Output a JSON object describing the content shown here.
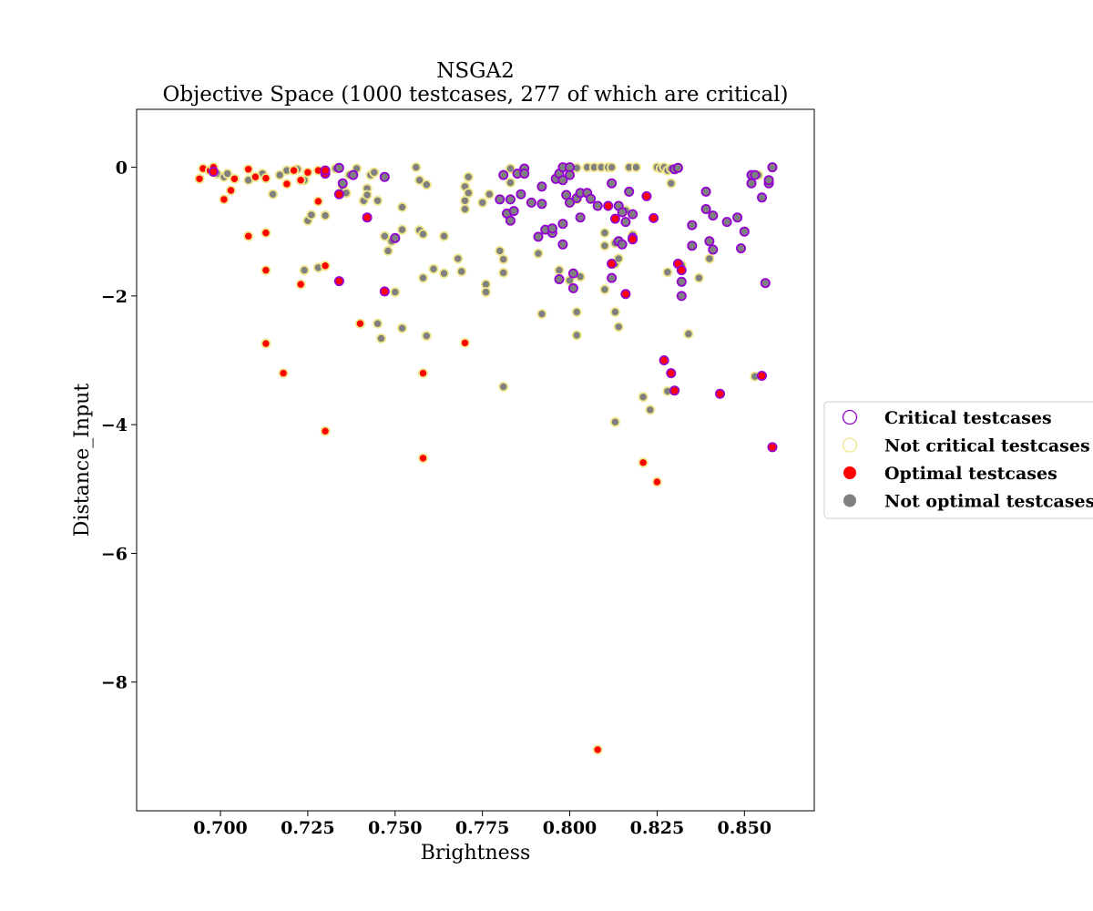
{
  "chart_data": {
    "type": "scatter",
    "title": "NSGA2",
    "subtitle": "Objective Space (1000 testcases, 277 of which are critical)",
    "xlabel": "Brightness",
    "ylabel": "Distance_Input",
    "xlim": [
      0.676,
      0.87
    ],
    "ylim": [
      -10.0,
      0.9
    ],
    "xticks": [
      0.7,
      0.725,
      0.75,
      0.775,
      0.8,
      0.825,
      0.85
    ],
    "xtick_labels": [
      "0.700",
      "0.725",
      "0.750",
      "0.775",
      "0.800",
      "0.825",
      "0.850"
    ],
    "yticks": [
      0,
      -2,
      -4,
      -6,
      -8
    ],
    "ytick_labels": [
      "0",
      "−2",
      "−4",
      "−6",
      "−8"
    ],
    "grid": false,
    "legend_position": "right, outside plot",
    "legend": [
      {
        "label": "Critical testcases",
        "marker": "hollow-circle",
        "color": "#9400d3"
      },
      {
        "label": "Not critical testcases",
        "marker": "hollow-circle",
        "color": "#f0e68c"
      },
      {
        "label": "Optimal testcases",
        "marker": "filled-circle",
        "color": "#ff0000"
      },
      {
        "label": "Not optimal testcases",
        "marker": "filled-circle",
        "color": "#808080"
      }
    ],
    "colors": {
      "critical_edge": "#9400d3",
      "not_critical_edge": "#f0e68c",
      "optimal_fill": "#ff0000",
      "not_optimal_fill": "#808080"
    },
    "series": [
      {
        "name": "Not critical, not optimal",
        "edge": "#f0e68c",
        "fill": "#808080",
        "points": [
          [
            0.697,
            -0.05
          ],
          [
            0.699,
            -0.1
          ],
          [
            0.701,
            -0.15
          ],
          [
            0.702,
            -0.1
          ],
          [
            0.708,
            -0.2
          ],
          [
            0.712,
            -0.1
          ],
          [
            0.715,
            -0.42
          ],
          [
            0.717,
            -0.12
          ],
          [
            0.719,
            -0.05
          ],
          [
            0.722,
            -0.03
          ],
          [
            0.724,
            -0.2
          ],
          [
            0.725,
            -0.83
          ],
          [
            0.726,
            -0.74
          ],
          [
            0.724,
            -1.6
          ],
          [
            0.728,
            -1.56
          ],
          [
            0.73,
            -0.75
          ],
          [
            0.733,
            -0.02
          ],
          [
            0.735,
            -0.3
          ],
          [
            0.736,
            -0.4
          ],
          [
            0.737,
            -0.12
          ],
          [
            0.739,
            -0.02
          ],
          [
            0.741,
            -0.52
          ],
          [
            0.742,
            -0.33
          ],
          [
            0.742,
            -0.43
          ],
          [
            0.743,
            -0.12
          ],
          [
            0.744,
            -0.08
          ],
          [
            0.745,
            -0.52
          ],
          [
            0.745,
            -2.43
          ],
          [
            0.746,
            -2.66
          ],
          [
            0.747,
            -1.07
          ],
          [
            0.748,
            -1.3
          ],
          [
            0.749,
            -1.15
          ],
          [
            0.75,
            -1.94
          ],
          [
            0.752,
            -0.62
          ],
          [
            0.752,
            -0.97
          ],
          [
            0.752,
            -2.5
          ],
          [
            0.756,
            0.0
          ],
          [
            0.757,
            -0.2
          ],
          [
            0.757,
            -0.98
          ],
          [
            0.758,
            -1.04
          ],
          [
            0.758,
            -1.72
          ],
          [
            0.759,
            -0.27
          ],
          [
            0.759,
            -2.62
          ],
          [
            0.761,
            -1.58
          ],
          [
            0.764,
            -1.07
          ],
          [
            0.764,
            -1.65
          ],
          [
            0.768,
            -1.42
          ],
          [
            0.769,
            -1.62
          ],
          [
            0.77,
            -0.52
          ],
          [
            0.77,
            -0.65
          ],
          [
            0.77,
            -0.3
          ],
          [
            0.771,
            -0.15
          ],
          [
            0.771,
            -0.4
          ],
          [
            0.775,
            -0.55
          ],
          [
            0.776,
            -1.82
          ],
          [
            0.776,
            -1.94
          ],
          [
            0.777,
            -0.42
          ],
          [
            0.78,
            -1.3
          ],
          [
            0.781,
            -1.43
          ],
          [
            0.781,
            -1.64
          ],
          [
            0.781,
            -3.41
          ],
          [
            0.783,
            -0.24
          ],
          [
            0.783,
            -0.02
          ],
          [
            0.791,
            -1.34
          ],
          [
            0.792,
            -2.28
          ],
          [
            0.797,
            -1.6
          ],
          [
            0.8,
            -1.76
          ],
          [
            0.802,
            -0.01
          ],
          [
            0.802,
            -0.5
          ],
          [
            0.802,
            -2.25
          ],
          [
            0.802,
            -2.61
          ],
          [
            0.803,
            -1.7
          ],
          [
            0.805,
            0.0
          ],
          [
            0.807,
            0.0
          ],
          [
            0.809,
            0.0
          ],
          [
            0.81,
            -1.02
          ],
          [
            0.81,
            -1.22
          ],
          [
            0.81,
            -1.9
          ],
          [
            0.811,
            0.0
          ],
          [
            0.812,
            0.0
          ],
          [
            0.813,
            -1.18
          ],
          [
            0.813,
            -1.5
          ],
          [
            0.813,
            -2.25
          ],
          [
            0.813,
            -3.96
          ],
          [
            0.814,
            -1.42
          ],
          [
            0.814,
            -2.48
          ],
          [
            0.816,
            -0.67
          ],
          [
            0.817,
            0.0
          ],
          [
            0.818,
            -1.05
          ],
          [
            0.819,
            0.0
          ],
          [
            0.821,
            -3.57
          ],
          [
            0.823,
            -3.77
          ],
          [
            0.825,
            0.0
          ],
          [
            0.826,
            -0.02
          ],
          [
            0.827,
            0.0
          ],
          [
            0.828,
            -0.05
          ],
          [
            0.828,
            -1.63
          ],
          [
            0.828,
            -3.48
          ],
          [
            0.829,
            -0.25
          ],
          [
            0.829,
            -0.02
          ],
          [
            0.832,
            -1.52
          ],
          [
            0.834,
            -2.59
          ],
          [
            0.837,
            -1.72
          ],
          [
            0.84,
            -1.42
          ],
          [
            0.853,
            -3.25
          ],
          [
            0.854,
            -0.12
          ]
        ]
      },
      {
        "name": "Critical, not optimal",
        "edge": "#9400d3",
        "fill": "#808080",
        "points": [
          [
            0.734,
            -0.01
          ],
          [
            0.735,
            -0.25
          ],
          [
            0.738,
            -0.12
          ],
          [
            0.747,
            -0.15
          ],
          [
            0.75,
            -1.1
          ],
          [
            0.78,
            -0.5
          ],
          [
            0.781,
            -0.12
          ],
          [
            0.782,
            -0.72
          ],
          [
            0.783,
            -0.5
          ],
          [
            0.783,
            -0.83
          ],
          [
            0.784,
            -0.68
          ],
          [
            0.785,
            -0.1
          ],
          [
            0.786,
            -0.42
          ],
          [
            0.787,
            -0.02
          ],
          [
            0.787,
            -0.1
          ],
          [
            0.789,
            -0.55
          ],
          [
            0.791,
            -1.08
          ],
          [
            0.792,
            -0.3
          ],
          [
            0.792,
            -0.57
          ],
          [
            0.793,
            -0.97
          ],
          [
            0.795,
            -1.02
          ],
          [
            0.795,
            -0.95
          ],
          [
            0.796,
            -0.18
          ],
          [
            0.797,
            -0.1
          ],
          [
            0.797,
            -1.74
          ],
          [
            0.798,
            0.0
          ],
          [
            0.798,
            -0.2
          ],
          [
            0.798,
            -0.88
          ],
          [
            0.798,
            -1.2
          ],
          [
            0.799,
            -0.43
          ],
          [
            0.8,
            0.0
          ],
          [
            0.8,
            -0.55
          ],
          [
            0.8,
            -0.12
          ],
          [
            0.801,
            -1.88
          ],
          [
            0.801,
            -1.65
          ],
          [
            0.802,
            -0.48
          ],
          [
            0.803,
            -0.4
          ],
          [
            0.803,
            -0.78
          ],
          [
            0.805,
            -0.4
          ],
          [
            0.806,
            -0.49
          ],
          [
            0.808,
            -0.6
          ],
          [
            0.812,
            -1.72
          ],
          [
            0.812,
            -0.25
          ],
          [
            0.814,
            -0.6
          ],
          [
            0.814,
            -1.15
          ],
          [
            0.815,
            -1.2
          ],
          [
            0.815,
            -0.7
          ],
          [
            0.816,
            -0.85
          ],
          [
            0.817,
            -0.38
          ],
          [
            0.818,
            -1.1
          ],
          [
            0.818,
            -0.73
          ],
          [
            0.83,
            -0.03
          ],
          [
            0.831,
            -0.01
          ],
          [
            0.832,
            -1.78
          ],
          [
            0.832,
            -2.0
          ],
          [
            0.835,
            -1.22
          ],
          [
            0.835,
            -0.9
          ],
          [
            0.839,
            -0.38
          ],
          [
            0.839,
            -0.65
          ],
          [
            0.84,
            -1.15
          ],
          [
            0.841,
            -0.75
          ],
          [
            0.841,
            -1.28
          ],
          [
            0.845,
            -0.85
          ],
          [
            0.848,
            -0.78
          ],
          [
            0.849,
            -1.26
          ],
          [
            0.85,
            -1.0
          ],
          [
            0.852,
            -0.25
          ],
          [
            0.852,
            -0.12
          ],
          [
            0.853,
            -0.12
          ],
          [
            0.855,
            -0.47
          ],
          [
            0.856,
            -1.8
          ],
          [
            0.857,
            -0.25
          ],
          [
            0.857,
            -0.2
          ],
          [
            0.858,
            0.0
          ]
        ]
      },
      {
        "name": "Not critical, optimal",
        "edge": "#f0e68c",
        "fill": "#ff0000",
        "points": [
          [
            0.694,
            -0.18
          ],
          [
            0.695,
            -0.02
          ],
          [
            0.697,
            -0.05
          ],
          [
            0.698,
            -0.08
          ],
          [
            0.698,
            0.0
          ],
          [
            0.701,
            -0.5
          ],
          [
            0.703,
            -0.36
          ],
          [
            0.704,
            -0.18
          ],
          [
            0.708,
            -0.03
          ],
          [
            0.708,
            -1.07
          ],
          [
            0.71,
            -0.15
          ],
          [
            0.713,
            -1.02
          ],
          [
            0.713,
            -0.17
          ],
          [
            0.713,
            -1.6
          ],
          [
            0.713,
            -2.74
          ],
          [
            0.718,
            -3.2
          ],
          [
            0.719,
            -0.26
          ],
          [
            0.721,
            -0.05
          ],
          [
            0.723,
            -0.2
          ],
          [
            0.723,
            -1.82
          ],
          [
            0.725,
            -0.08
          ],
          [
            0.728,
            -0.53
          ],
          [
            0.728,
            -0.05
          ],
          [
            0.73,
            -1.53
          ],
          [
            0.73,
            -4.1
          ],
          [
            0.74,
            -2.43
          ],
          [
            0.758,
            -4.52
          ],
          [
            0.758,
            -3.2
          ],
          [
            0.77,
            -2.73
          ],
          [
            0.808,
            -9.05
          ],
          [
            0.821,
            -4.59
          ],
          [
            0.825,
            -4.89
          ]
        ]
      },
      {
        "name": "Critical, optimal",
        "edge": "#9400d3",
        "fill": "#ff0000",
        "points": [
          [
            0.698,
            -0.07
          ],
          [
            0.73,
            -0.1
          ],
          [
            0.73,
            -0.05
          ],
          [
            0.734,
            -0.42
          ],
          [
            0.734,
            -1.77
          ],
          [
            0.742,
            -0.78
          ],
          [
            0.747,
            -1.93
          ],
          [
            0.811,
            -0.6
          ],
          [
            0.812,
            -1.5
          ],
          [
            0.813,
            -0.8
          ],
          [
            0.816,
            -1.97
          ],
          [
            0.818,
            -1.12
          ],
          [
            0.822,
            -0.45
          ],
          [
            0.824,
            -0.79
          ],
          [
            0.827,
            -3.0
          ],
          [
            0.829,
            -3.2
          ],
          [
            0.83,
            -3.47
          ],
          [
            0.831,
            -1.5
          ],
          [
            0.832,
            -1.6
          ],
          [
            0.843,
            -3.52
          ],
          [
            0.855,
            -3.24
          ],
          [
            0.858,
            -4.35
          ]
        ]
      }
    ]
  }
}
